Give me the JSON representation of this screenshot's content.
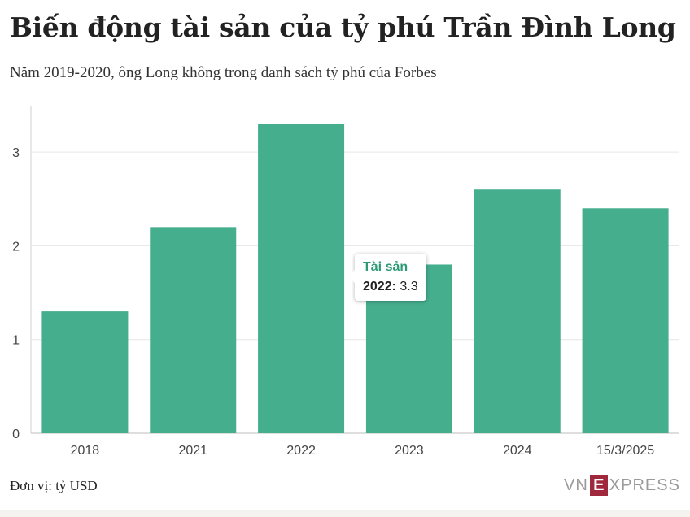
{
  "header": {
    "title": "Biến động tài sản của tỷ phú Trần Đình Long",
    "subtitle": "Năm 2019-2020, ông Long không trong danh sách tỷ phú của Forbes"
  },
  "chart_data": {
    "type": "bar",
    "categories": [
      "2018",
      "2021",
      "2022",
      "2023",
      "2024",
      "15/3/2025"
    ],
    "series": [
      {
        "name": "Tài sản",
        "values": [
          1.3,
          2.2,
          3.3,
          1.8,
          2.6,
          2.4
        ]
      }
    ],
    "ylim": [
      0,
      3.4
    ],
    "yticks": [
      0,
      1,
      2,
      3
    ],
    "grid": true,
    "bar_color": "#45ae8d"
  },
  "tooltip": {
    "series": "Tài sản",
    "category": "2022:",
    "value": "3.3"
  },
  "footer": {
    "unit_note": "Đơn vị: tỷ USD",
    "logo_left": "VN",
    "logo_e": "E",
    "logo_right": "XPRESS"
  },
  "colors": {
    "accent": "#2b9a75",
    "logo": "#a0283c"
  }
}
